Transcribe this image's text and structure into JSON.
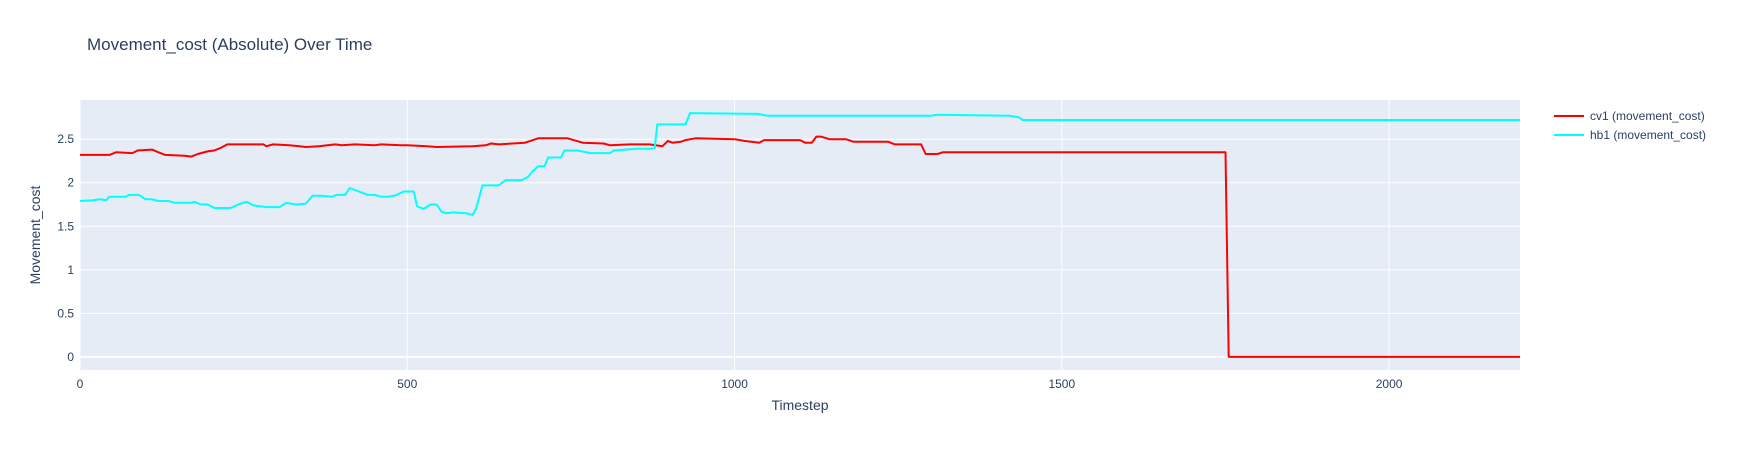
{
  "chart_data": {
    "type": "line",
    "title": "Movement_cost (Absolute) Over Time",
    "xlabel": "Timestep",
    "ylabel": "Movement_cost",
    "xlim": [
      0,
      2200
    ],
    "ylim": [
      -0.15,
      2.95
    ],
    "x_ticks": [
      0,
      500,
      1000,
      1500,
      2000
    ],
    "x_tick_labels": [
      "0",
      "500",
      "1000",
      "1500",
      "2000"
    ],
    "y_ticks": [
      0,
      0.5,
      1,
      1.5,
      2,
      2.5
    ],
    "y_tick_labels": [
      "0",
      "0.5",
      "1",
      "1.5",
      "2",
      "2.5"
    ],
    "grid": true,
    "legend_position": "top-right",
    "series": [
      {
        "name": "cv1 (movement_cost)",
        "color": "#ff0000",
        "points": [
          [
            0,
            2.32
          ],
          [
            45,
            2.32
          ],
          [
            55,
            2.35
          ],
          [
            80,
            2.34
          ],
          [
            88,
            2.37
          ],
          [
            110,
            2.38
          ],
          [
            120,
            2.35
          ],
          [
            130,
            2.32
          ],
          [
            160,
            2.31
          ],
          [
            170,
            2.3
          ],
          [
            180,
            2.33
          ],
          [
            195,
            2.36
          ],
          [
            205,
            2.37
          ],
          [
            215,
            2.4
          ],
          [
            225,
            2.44
          ],
          [
            280,
            2.44
          ],
          [
            285,
            2.42
          ],
          [
            295,
            2.44
          ],
          [
            320,
            2.43
          ],
          [
            335,
            2.42
          ],
          [
            345,
            2.41
          ],
          [
            365,
            2.42
          ],
          [
            390,
            2.44
          ],
          [
            400,
            2.43
          ],
          [
            420,
            2.44
          ],
          [
            450,
            2.43
          ],
          [
            460,
            2.44
          ],
          [
            490,
            2.43
          ],
          [
            500,
            2.43
          ],
          [
            530,
            2.42
          ],
          [
            545,
            2.41
          ],
          [
            600,
            2.42
          ],
          [
            620,
            2.43
          ],
          [
            628,
            2.45
          ],
          [
            640,
            2.44
          ],
          [
            680,
            2.46
          ],
          [
            700,
            2.51
          ],
          [
            745,
            2.51
          ],
          [
            768,
            2.46
          ],
          [
            800,
            2.45
          ],
          [
            810,
            2.43
          ],
          [
            840,
            2.44
          ],
          [
            870,
            2.44
          ],
          [
            890,
            2.42
          ],
          [
            898,
            2.48
          ],
          [
            905,
            2.46
          ],
          [
            918,
            2.47
          ],
          [
            925,
            2.49
          ],
          [
            940,
            2.51
          ],
          [
            1000,
            2.5
          ],
          [
            1015,
            2.48
          ],
          [
            1038,
            2.46
          ],
          [
            1045,
            2.49
          ],
          [
            1100,
            2.49
          ],
          [
            1108,
            2.46
          ],
          [
            1118,
            2.46
          ],
          [
            1125,
            2.53
          ],
          [
            1132,
            2.53
          ],
          [
            1145,
            2.5
          ],
          [
            1170,
            2.5
          ],
          [
            1182,
            2.47
          ],
          [
            1235,
            2.47
          ],
          [
            1245,
            2.44
          ],
          [
            1285,
            2.44
          ],
          [
            1292,
            2.33
          ],
          [
            1310,
            2.33
          ],
          [
            1318,
            2.35
          ],
          [
            1750,
            2.35
          ],
          [
            1755,
            0
          ],
          [
            2200,
            0
          ]
        ]
      },
      {
        "name": "hb1 (movement_cost)",
        "color": "#00ffff",
        "points": [
          [
            0,
            1.79
          ],
          [
            20,
            1.8
          ],
          [
            30,
            1.81
          ],
          [
            40,
            1.8
          ],
          [
            45,
            1.84
          ],
          [
            70,
            1.84
          ],
          [
            75,
            1.86
          ],
          [
            90,
            1.86
          ],
          [
            100,
            1.81
          ],
          [
            110,
            1.81
          ],
          [
            120,
            1.79
          ],
          [
            135,
            1.79
          ],
          [
            145,
            1.77
          ],
          [
            170,
            1.77
          ],
          [
            175,
            1.78
          ],
          [
            185,
            1.75
          ],
          [
            195,
            1.75
          ],
          [
            205,
            1.71
          ],
          [
            230,
            1.71
          ],
          [
            245,
            1.76
          ],
          [
            255,
            1.78
          ],
          [
            265,
            1.74
          ],
          [
            285,
            1.72
          ],
          [
            305,
            1.72
          ],
          [
            315,
            1.77
          ],
          [
            330,
            1.75
          ],
          [
            345,
            1.76
          ],
          [
            355,
            1.85
          ],
          [
            370,
            1.85
          ],
          [
            385,
            1.84
          ],
          [
            392,
            1.86
          ],
          [
            405,
            1.86
          ],
          [
            412,
            1.94
          ],
          [
            440,
            1.86
          ],
          [
            450,
            1.86
          ],
          [
            460,
            1.84
          ],
          [
            470,
            1.84
          ],
          [
            480,
            1.85
          ],
          [
            495,
            1.9
          ],
          [
            510,
            1.9
          ],
          [
            515,
            1.73
          ],
          [
            525,
            1.7
          ],
          [
            535,
            1.75
          ],
          [
            545,
            1.75
          ],
          [
            552,
            1.67
          ],
          [
            560,
            1.65
          ],
          [
            570,
            1.66
          ],
          [
            590,
            1.65
          ],
          [
            600,
            1.63
          ],
          [
            605,
            1.7
          ],
          [
            615,
            1.97
          ],
          [
            640,
            1.97
          ],
          [
            650,
            2.03
          ],
          [
            675,
            2.03
          ],
          [
            685,
            2.07
          ],
          [
            690,
            2.12
          ],
          [
            700,
            2.19
          ],
          [
            710,
            2.19
          ],
          [
            715,
            2.29
          ],
          [
            735,
            2.29
          ],
          [
            740,
            2.37
          ],
          [
            760,
            2.37
          ],
          [
            780,
            2.34
          ],
          [
            810,
            2.34
          ],
          [
            815,
            2.37
          ],
          [
            850,
            2.39
          ],
          [
            870,
            2.39
          ],
          [
            878,
            2.4
          ],
          [
            882,
            2.67
          ],
          [
            925,
            2.67
          ],
          [
            932,
            2.8
          ],
          [
            1035,
            2.79
          ],
          [
            1050,
            2.77
          ],
          [
            1150,
            2.77
          ],
          [
            1300,
            2.77
          ],
          [
            1310,
            2.78
          ],
          [
            1420,
            2.77
          ],
          [
            1435,
            2.75
          ],
          [
            1440,
            2.72
          ],
          [
            2200,
            2.72
          ]
        ]
      }
    ]
  }
}
